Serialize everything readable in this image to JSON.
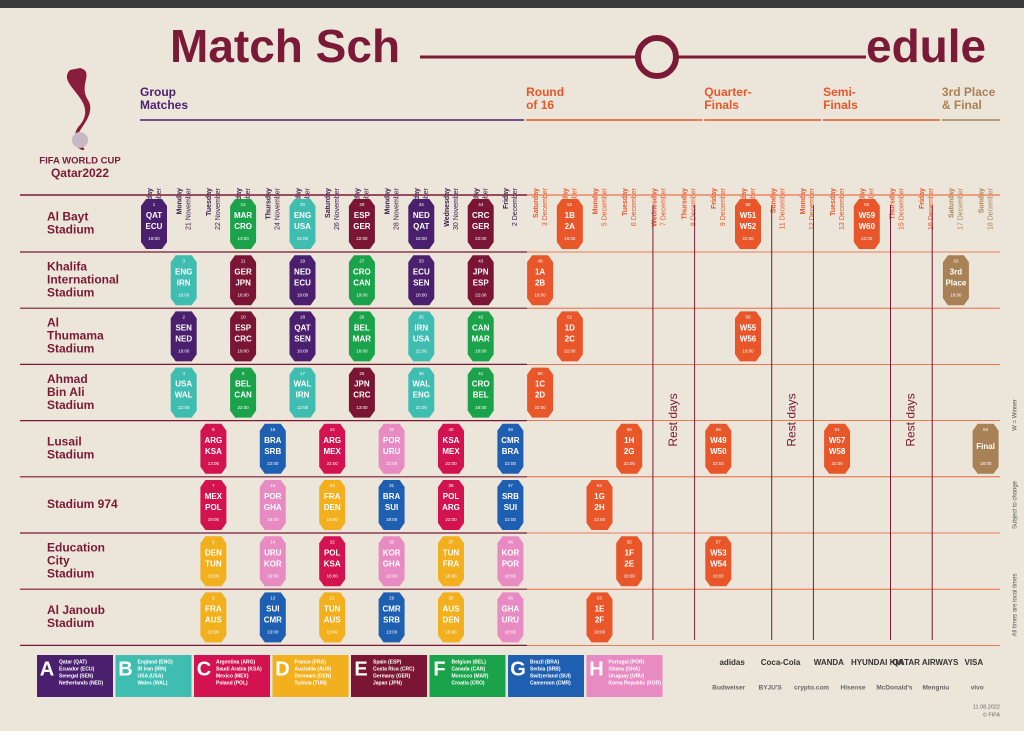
{
  "title": [
    "Match Sch",
    "edule"
  ],
  "logo": [
    "FIFA WORLD CUP",
    "Qatar2022"
  ],
  "stages": [
    {
      "lines": [
        "Group",
        "Matches"
      ],
      "first_day": 0,
      "color": "#4a1f6e"
    },
    {
      "lines": [
        "Round",
        "of 16"
      ],
      "first_day": 13,
      "color": "#e8562a"
    },
    {
      "lines": [
        "Quarter-",
        "Finals"
      ],
      "first_day": 19,
      "color": "#e8562a"
    },
    {
      "lines": [
        "Semi-",
        "Finals"
      ],
      "first_day": 23,
      "color": "#e8562a"
    },
    {
      "lines": [
        "3rd Place",
        "& Final"
      ],
      "first_day": 27,
      "color": "#a98157"
    }
  ],
  "dates": [
    {
      "day": "Sunday",
      "date": "20 November"
    },
    {
      "day": "Monday",
      "date": "21 November"
    },
    {
      "day": "Tuesday",
      "date": "22 November"
    },
    {
      "day": "Wednesday",
      "date": "23 November"
    },
    {
      "day": "Thursday",
      "date": "24 November"
    },
    {
      "day": "Friday",
      "date": "25 November"
    },
    {
      "day": "Saturday",
      "date": "26 November"
    },
    {
      "day": "Sunday",
      "date": "27 November"
    },
    {
      "day": "Monday",
      "date": "28 November"
    },
    {
      "day": "Tuesday",
      "date": "29 November"
    },
    {
      "day": "Wednesday",
      "date": "30 November"
    },
    {
      "day": "Thursday",
      "date": "1 December"
    },
    {
      "day": "Friday",
      "date": "2 December"
    },
    {
      "day": "Saturday",
      "date": "3 December"
    },
    {
      "day": "Sunday",
      "date": "4 December"
    },
    {
      "day": "Monday",
      "date": "5 December"
    },
    {
      "day": "Tuesday",
      "date": "6 December"
    },
    {
      "day": "Wednesday",
      "date": "7 December"
    },
    {
      "day": "Thursday",
      "date": "8 December"
    },
    {
      "day": "Friday",
      "date": "9 December"
    },
    {
      "day": "Saturday",
      "date": "10 December"
    },
    {
      "day": "Sunday",
      "date": "11 December"
    },
    {
      "day": "Monday",
      "date": "12 December"
    },
    {
      "day": "Tuesday",
      "date": "13 December"
    },
    {
      "day": "Wednesday",
      "date": "14 December"
    },
    {
      "day": "Thursday",
      "date": "15 December"
    },
    {
      "day": "Friday",
      "date": "16 December"
    },
    {
      "day": "Saturday",
      "date": "17 December"
    },
    {
      "day": "Sunday",
      "date": "18 December"
    }
  ],
  "stadiums": [
    [
      "Al Bayt",
      "Stadium"
    ],
    [
      "Khalifa",
      "International",
      "Stadium"
    ],
    [
      "Al",
      "Thumama",
      "Stadium"
    ],
    [
      "Ahmad",
      "Bin Ali",
      "Stadium"
    ],
    [
      "Lusail",
      "Stadium"
    ],
    [
      "Stadium 974"
    ],
    [
      "Education",
      "City",
      "Stadium"
    ],
    [
      "Al Janoub",
      "Stadium"
    ]
  ],
  "groups": [
    {
      "letter": "A",
      "color": "#4a1f6e",
      "teams": [
        "Qatar (QAT)",
        "Ecuador (ECU)",
        "Senegal (SEN)",
        "Netherlands (NED)"
      ]
    },
    {
      "letter": "B",
      "color": "#3fbdb0",
      "teams": [
        "England (ENG)",
        "IR Iran (IRN)",
        "USA (USA)",
        "Wales (WAL)"
      ]
    },
    {
      "letter": "C",
      "color": "#d3134f",
      "teams": [
        "Argentina (ARG)",
        "Saudi Arabia (KSA)",
        "Mexico (MEX)",
        "Poland (POL)"
      ]
    },
    {
      "letter": "D",
      "color": "#f2b01e",
      "teams": [
        "France (FRA)",
        "Australia (AUS)",
        "Denmark (DEN)",
        "Tunisia (TUN)"
      ]
    },
    {
      "letter": "E",
      "color": "#7b1535",
      "teams": [
        "Spain (ESP)",
        "Costa Rica (CRC)",
        "Germany (GER)",
        "Japan (JPN)"
      ]
    },
    {
      "letter": "F",
      "color": "#1ba34b",
      "teams": [
        "Belgium (BEL)",
        "Canada (CAN)",
        "Morocco (MAR)",
        "Croatia (CRO)"
      ]
    },
    {
      "letter": "G",
      "color": "#1f5fb2",
      "teams": [
        "Brazil (BRA)",
        "Serbia (SRB)",
        "Switzerland (SUI)",
        "Cameroon (CMR)"
      ]
    },
    {
      "letter": "H",
      "color": "#e98bc3",
      "teams": [
        "Portugal (POR)",
        "Ghana (GHA)",
        "Uruguay (URU)",
        "Korea Republic (KOR)"
      ]
    }
  ],
  "matches": [
    {
      "number": 1,
      "teams": [
        "QAT",
        "ECU"
      ],
      "time": "19:00",
      "stadium": 0,
      "day": 0,
      "group": "A"
    },
    {
      "number": 2,
      "teams": [
        "SEN",
        "NED"
      ],
      "time": "19:00",
      "stadium": 2,
      "day": 1,
      "group": "A"
    },
    {
      "number": 3,
      "teams": [
        "ENG",
        "IRN"
      ],
      "time": "16:00",
      "stadium": 1,
      "day": 1,
      "group": "B"
    },
    {
      "number": 4,
      "teams": [
        "USA",
        "WAL"
      ],
      "time": "22:00",
      "stadium": 3,
      "day": 1,
      "group": "B"
    },
    {
      "number": 5,
      "teams": [
        "FRA",
        "AUS"
      ],
      "time": "22:00",
      "stadium": 7,
      "day": 2,
      "group": "D"
    },
    {
      "number": 6,
      "teams": [
        "DEN",
        "TUN"
      ],
      "time": "16:00",
      "stadium": 6,
      "day": 2,
      "group": "D"
    },
    {
      "number": 7,
      "teams": [
        "MEX",
        "POL"
      ],
      "time": "19:00",
      "stadium": 5,
      "day": 2,
      "group": "C"
    },
    {
      "number": 8,
      "teams": [
        "ARG",
        "KSA"
      ],
      "time": "13:00",
      "stadium": 4,
      "day": 2,
      "group": "C"
    },
    {
      "number": 9,
      "teams": [
        "BEL",
        "CAN"
      ],
      "time": "22:00",
      "stadium": 3,
      "day": 3,
      "group": "F"
    },
    {
      "number": 10,
      "teams": [
        "ESP",
        "CRC"
      ],
      "time": "19:00",
      "stadium": 2,
      "day": 3,
      "group": "E"
    },
    {
      "number": 11,
      "teams": [
        "GER",
        "JPN"
      ],
      "time": "16:00",
      "stadium": 1,
      "day": 3,
      "group": "E"
    },
    {
      "number": 12,
      "teams": [
        "MAR",
        "CRO"
      ],
      "time": "13:00",
      "stadium": 0,
      "day": 3,
      "group": "F"
    },
    {
      "number": 13,
      "teams": [
        "SUI",
        "CMR"
      ],
      "time": "13:00",
      "stadium": 7,
      "day": 4,
      "group": "G"
    },
    {
      "number": 14,
      "teams": [
        "URU",
        "KOR"
      ],
      "time": "16:00",
      "stadium": 6,
      "day": 4,
      "group": "H"
    },
    {
      "number": 15,
      "teams": [
        "POR",
        "GHA"
      ],
      "time": "19:00",
      "stadium": 5,
      "day": 4,
      "group": "H"
    },
    {
      "number": 16,
      "teams": [
        "BRA",
        "SRB"
      ],
      "time": "22:00",
      "stadium": 4,
      "day": 4,
      "group": "G"
    },
    {
      "number": 17,
      "teams": [
        "WAL",
        "IRN"
      ],
      "time": "13:00",
      "stadium": 3,
      "day": 5,
      "group": "B"
    },
    {
      "number": 18,
      "teams": [
        "QAT",
        "SEN"
      ],
      "time": "16:00",
      "stadium": 2,
      "day": 5,
      "group": "A"
    },
    {
      "number": 19,
      "teams": [
        "NED",
        "ECU"
      ],
      "time": "19:00",
      "stadium": 1,
      "day": 5,
      "group": "A"
    },
    {
      "number": 20,
      "teams": [
        "ENG",
        "USA"
      ],
      "time": "22:00",
      "stadium": 0,
      "day": 5,
      "group": "B"
    },
    {
      "number": 21,
      "teams": [
        "TUN",
        "AUS"
      ],
      "time": "13:00",
      "stadium": 7,
      "day": 6,
      "group": "D"
    },
    {
      "number": 22,
      "teams": [
        "POL",
        "KSA"
      ],
      "time": "16:00",
      "stadium": 6,
      "day": 6,
      "group": "C"
    },
    {
      "number": 23,
      "teams": [
        "FRA",
        "DEN"
      ],
      "time": "19:00",
      "stadium": 5,
      "day": 6,
      "group": "D"
    },
    {
      "number": 24,
      "teams": [
        "ARG",
        "MEX"
      ],
      "time": "22:00",
      "stadium": 4,
      "day": 6,
      "group": "C"
    },
    {
      "number": 25,
      "teams": [
        "JPN",
        "CRC"
      ],
      "time": "13:00",
      "stadium": 3,
      "day": 7,
      "group": "E"
    },
    {
      "number": 26,
      "teams": [
        "BEL",
        "MAR"
      ],
      "time": "16:00",
      "stadium": 2,
      "day": 7,
      "group": "F"
    },
    {
      "number": 27,
      "teams": [
        "CRO",
        "CAN"
      ],
      "time": "19:00",
      "stadium": 1,
      "day": 7,
      "group": "F"
    },
    {
      "number": 28,
      "teams": [
        "ESP",
        "GER"
      ],
      "time": "22:00",
      "stadium": 0,
      "day": 7,
      "group": "E"
    },
    {
      "number": 29,
      "teams": [
        "CMR",
        "SRB"
      ],
      "time": "13:00",
      "stadium": 7,
      "day": 8,
      "group": "G"
    },
    {
      "number": 30,
      "teams": [
        "KOR",
        "GHA"
      ],
      "time": "16:00",
      "stadium": 6,
      "day": 8,
      "group": "H"
    },
    {
      "number": 31,
      "teams": [
        "BRA",
        "SUI"
      ],
      "time": "19:00",
      "stadium": 5,
      "day": 8,
      "group": "G"
    },
    {
      "number": 32,
      "teams": [
        "POR",
        "URU"
      ],
      "time": "22:00",
      "stadium": 4,
      "day": 8,
      "group": "H"
    },
    {
      "number": 33,
      "teams": [
        "ECU",
        "SEN"
      ],
      "time": "18:00",
      "stadium": 1,
      "day": 9,
      "group": "A"
    },
    {
      "number": 34,
      "teams": [
        "NED",
        "QAT"
      ],
      "time": "18:00",
      "stadium": 0,
      "day": 9,
      "group": "A"
    },
    {
      "number": 35,
      "teams": [
        "IRN",
        "USA"
      ],
      "time": "22:00",
      "stadium": 2,
      "day": 9,
      "group": "B"
    },
    {
      "number": 36,
      "teams": [
        "WAL",
        "ENG"
      ],
      "time": "22:00",
      "stadium": 3,
      "day": 9,
      "group": "B"
    },
    {
      "number": 37,
      "teams": [
        "TUN",
        "FRA"
      ],
      "time": "18:00",
      "stadium": 6,
      "day": 10,
      "group": "D"
    },
    {
      "number": 38,
      "teams": [
        "AUS",
        "DEN"
      ],
      "time": "18:00",
      "stadium": 7,
      "day": 10,
      "group": "D"
    },
    {
      "number": 39,
      "teams": [
        "POL",
        "ARG"
      ],
      "time": "22:00",
      "stadium": 5,
      "day": 10,
      "group": "C"
    },
    {
      "number": 40,
      "teams": [
        "KSA",
        "MEX"
      ],
      "time": "22:00",
      "stadium": 4,
      "day": 10,
      "group": "C"
    },
    {
      "number": 41,
      "teams": [
        "CRO",
        "BEL"
      ],
      "time": "18:00",
      "stadium": 3,
      "day": 11,
      "group": "F"
    },
    {
      "number": 42,
      "teams": [
        "CAN",
        "MAR"
      ],
      "time": "18:00",
      "stadium": 2,
      "day": 11,
      "group": "F"
    },
    {
      "number": 43,
      "teams": [
        "JPN",
        "ESP"
      ],
      "time": "22:00",
      "stadium": 1,
      "day": 11,
      "group": "E"
    },
    {
      "number": 44,
      "teams": [
        "CRC",
        "GER"
      ],
      "time": "22:00",
      "stadium": 0,
      "day": 11,
      "group": "E"
    },
    {
      "number": 45,
      "teams": [
        "GHA",
        "URU"
      ],
      "time": "18:00",
      "stadium": 7,
      "day": 12,
      "group": "H"
    },
    {
      "number": 46,
      "teams": [
        "KOR",
        "POR"
      ],
      "time": "18:00",
      "stadium": 6,
      "day": 12,
      "group": "H"
    },
    {
      "number": 47,
      "teams": [
        "SRB",
        "SUI"
      ],
      "time": "22:00",
      "stadium": 5,
      "day": 12,
      "group": "G"
    },
    {
      "number": 48,
      "teams": [
        "CMR",
        "BRA"
      ],
      "time": "22:00",
      "stadium": 4,
      "day": 12,
      "group": "G"
    },
    {
      "number": 49,
      "teams": [
        "1A",
        "2B"
      ],
      "time": "18:00",
      "stadium": 1,
      "day": 13
    },
    {
      "number": 50,
      "teams": [
        "1C",
        "2D"
      ],
      "time": "22:00",
      "stadium": 3,
      "day": 13
    },
    {
      "number": 51,
      "teams": [
        "1D",
        "2C"
      ],
      "time": "22:00",
      "stadium": 2,
      "day": 14
    },
    {
      "number": 52,
      "teams": [
        "1B",
        "2A"
      ],
      "time": "18:00",
      "stadium": 0,
      "day": 14
    },
    {
      "number": 53,
      "teams": [
        "1E",
        "2F"
      ],
      "time": "18:00",
      "stadium": 7,
      "day": 15
    },
    {
      "number": 54,
      "teams": [
        "1G",
        "2H"
      ],
      "time": "22:00",
      "stadium": 5,
      "day": 15
    },
    {
      "number": 55,
      "teams": [
        "1F",
        "2E"
      ],
      "time": "18:00",
      "stadium": 6,
      "day": 16
    },
    {
      "number": 56,
      "teams": [
        "1H",
        "2G"
      ],
      "time": "22:00",
      "stadium": 4,
      "day": 16
    },
    {
      "number": 57,
      "teams": [
        "W53",
        "W54"
      ],
      "time": "18:00",
      "stadium": 6,
      "day": 19
    },
    {
      "number": 58,
      "teams": [
        "W49",
        "W50"
      ],
      "time": "22:00",
      "stadium": 4,
      "day": 19
    },
    {
      "number": 59,
      "teams": [
        "W55",
        "W56"
      ],
      "time": "18:00",
      "stadium": 2,
      "day": 20
    },
    {
      "number": 60,
      "teams": [
        "W51",
        "W52"
      ],
      "time": "22:00",
      "stadium": 0,
      "day": 20
    },
    {
      "number": 61,
      "teams": [
        "W57",
        "W58"
      ],
      "time": "22:00",
      "stadium": 4,
      "day": 23
    },
    {
      "number": 62,
      "teams": [
        "W59",
        "W60"
      ],
      "time": "22:00",
      "stadium": 0,
      "day": 24
    },
    {
      "number": 63,
      "teams": [
        "3rd",
        "Place"
      ],
      "time": "18:00",
      "stadium": 1,
      "day": 27
    },
    {
      "number": 64,
      "teams": [
        "Final"
      ],
      "time": "18:00",
      "stadium": 4,
      "day": 28
    }
  ],
  "rest_days": [
    {
      "label": "Rest days",
      "days": [
        17,
        18
      ]
    },
    {
      "label": "Rest days",
      "days": [
        21,
        22
      ]
    },
    {
      "label": "Rest days",
      "days": [
        25,
        26
      ]
    }
  ],
  "notes": [
    "W = Winner",
    "Subject to change",
    "All times are local times"
  ],
  "sponsors": [
    [
      "adidas",
      "Coca-Cola",
      "WANDA",
      "HYUNDAI KIA",
      "QATAR AIRWAYS",
      "VISA"
    ],
    [
      "Budweiser",
      "BYJU'S",
      "crypto.com",
      "Hisense",
      "McDonald's",
      "Mengniu",
      "vivo"
    ]
  ],
  "footer": [
    "11.08.2022",
    "© FIFA"
  ]
}
